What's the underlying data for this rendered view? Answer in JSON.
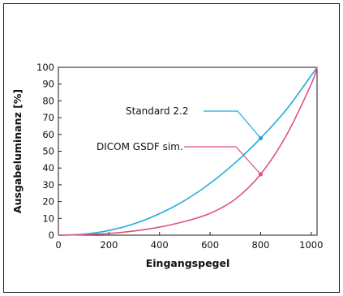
{
  "chart_data": {
    "type": "line",
    "title": "",
    "xlabel": "Eingangspegel",
    "ylabel": "Ausgabeluminanz [%]",
    "xlim": [
      0,
      1023
    ],
    "ylim": [
      0,
      100
    ],
    "x_ticks": [
      0,
      200,
      400,
      600,
      800,
      1000
    ],
    "y_ticks": [
      0,
      10,
      20,
      30,
      40,
      50,
      60,
      70,
      80,
      90,
      100
    ],
    "grid": false,
    "legend": "none",
    "series": [
      {
        "name": "Standard 2.2",
        "color": "#22aadd",
        "x": [
          0,
          100,
          200,
          300,
          400,
          500,
          600,
          700,
          800,
          900,
          1000,
          1023
        ],
        "y": [
          0,
          0.6,
          2.8,
          6.8,
          12.8,
          20.7,
          30.9,
          43.2,
          57.8,
          74.5,
          95.1,
          100
        ],
        "marker": {
          "x": 800,
          "y": 57.8
        }
      },
      {
        "name": "DICOM GSDF sim.",
        "color": "#e0508a",
        "x": [
          0,
          100,
          200,
          300,
          400,
          500,
          600,
          700,
          800,
          900,
          1000,
          1023
        ],
        "y": [
          0,
          0.3,
          1.0,
          2.5,
          4.8,
          8.2,
          13.0,
          21.5,
          36.3,
          59.0,
          90.0,
          100
        ],
        "marker": {
          "x": 800,
          "y": 36.3
        }
      }
    ]
  }
}
